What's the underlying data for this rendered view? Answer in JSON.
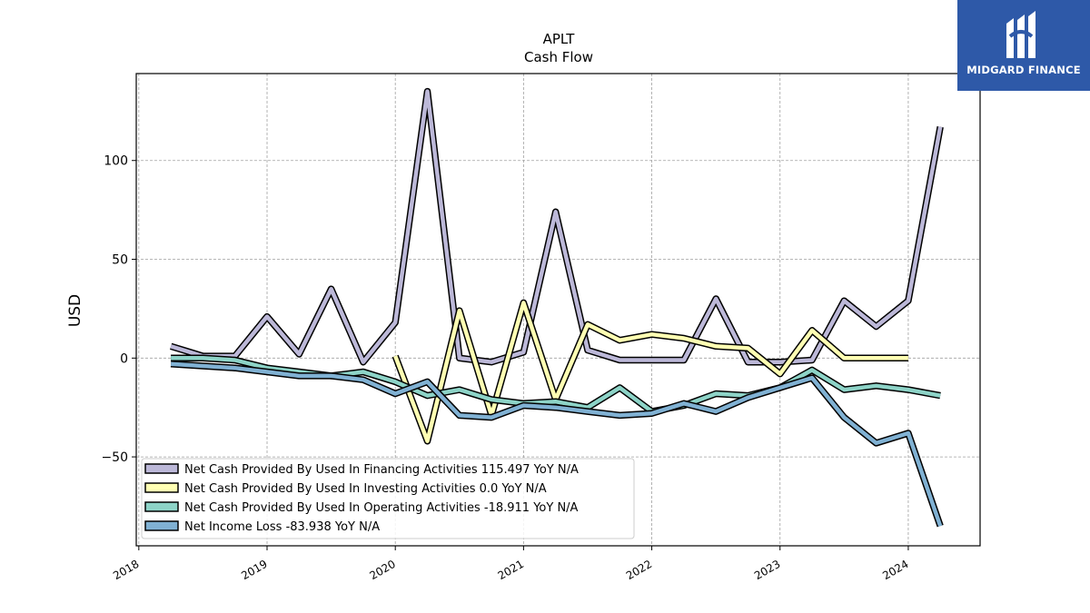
{
  "logo": {
    "text": "MIDGARD FINANCE",
    "bg_color": "#2e59a8"
  },
  "chart_data": {
    "type": "line",
    "title": "APLT",
    "subtitle": "Cash Flow",
    "ylabel": "USD",
    "xlabel": "",
    "xlim": [
      2017.98,
      2024.56
    ],
    "ylim": [
      -95,
      144
    ],
    "yticks": [
      -50,
      0,
      50,
      100
    ],
    "yticklabels": [
      "−50",
      "0",
      "50",
      "100"
    ],
    "xticks": [
      2018,
      2019,
      2020,
      2021,
      2022,
      2023,
      2024
    ],
    "xticklabels": [
      "2018",
      "2019",
      "2020",
      "2021",
      "2022",
      "2023",
      "2024"
    ],
    "grid": true,
    "legend_position": "lower-left",
    "series": [
      {
        "name": "Net Cash Provided By Used In Financing Activities  115.497 YoY N/A",
        "color": "#bcb8d8",
        "x": [
          2018.25,
          2018.5,
          2018.75,
          2019.0,
          2019.25,
          2019.5,
          2019.75,
          2020.0,
          2020.25,
          2020.5,
          2020.75,
          2021.0,
          2021.25,
          2021.5,
          2021.75,
          2022.0,
          2022.25,
          2022.5,
          2022.75,
          2023.0,
          2023.25,
          2023.5,
          2023.75,
          2024.0,
          2024.25
        ],
        "y": [
          6,
          1,
          1,
          21,
          2,
          35,
          -2,
          18,
          135,
          0,
          -2,
          3,
          74,
          4,
          -1,
          -1,
          -1,
          30,
          -2,
          -2,
          -1,
          29,
          16,
          29,
          117
        ]
      },
      {
        "name": "Net Cash Provided By Used In Investing Activities  0.0 YoY N/A",
        "color": "#ffffb3",
        "x": [
          2020.0,
          2020.25,
          2020.5,
          2020.75,
          2021.0,
          2021.25,
          2021.5,
          2021.75,
          2022.0,
          2022.25,
          2022.5,
          2022.75,
          2023.0,
          2023.25,
          2023.5,
          2023.75,
          2024.0
        ],
        "y": [
          1,
          -42,
          24,
          -29,
          28,
          -21,
          17,
          9,
          12,
          10,
          6,
          5,
          -8,
          14,
          0,
          0,
          0
        ]
      },
      {
        "name": "Net Cash Provided By Used In Operating Activities  -18.911 YoY N/A",
        "color": "#8dd3c7",
        "x": [
          2018.25,
          2018.5,
          2018.75,
          2019.0,
          2019.25,
          2019.5,
          2019.75,
          2020.0,
          2020.25,
          2020.5,
          2020.75,
          2021.0,
          2021.25,
          2021.5,
          2021.75,
          2022.0,
          2022.25,
          2022.5,
          2022.75,
          2023.0,
          2023.25,
          2023.5,
          2023.75,
          2024.0,
          2024.25
        ],
        "y": [
          0,
          0,
          -1,
          -5,
          -7,
          -9,
          -7,
          -12,
          -19,
          -16,
          -21,
          -23,
          -22,
          -25,
          -15,
          -27,
          -24,
          -18,
          -19,
          -15,
          -6,
          -16,
          -14,
          -16,
          -19
        ]
      },
      {
        "name": "Net Income Loss  -83.938 YoY N/A",
        "color": "#80b1d3",
        "x": [
          2018.25,
          2018.5,
          2018.75,
          2019.0,
          2019.25,
          2019.5,
          2019.75,
          2020.0,
          2020.25,
          2020.5,
          2020.75,
          2021.0,
          2021.25,
          2021.5,
          2021.75,
          2022.0,
          2022.25,
          2022.5,
          2022.75,
          2023.0,
          2023.25,
          2023.5,
          2023.75,
          2024.0,
          2024.25
        ],
        "y": [
          -3,
          -4,
          -5,
          -7,
          -9,
          -9,
          -11,
          -18,
          -12,
          -29,
          -30,
          -24,
          -25,
          -27,
          -29,
          -28,
          -23,
          -27,
          -20,
          -15,
          -10,
          -30,
          -43,
          -38,
          -85
        ]
      }
    ]
  }
}
